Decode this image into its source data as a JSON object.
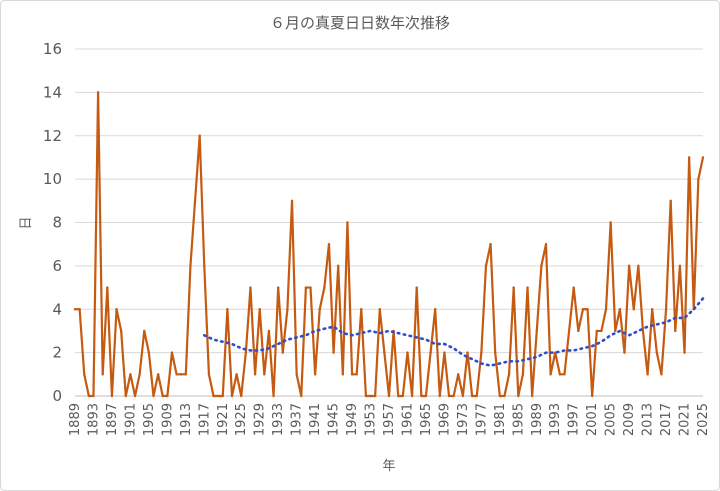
{
  "chart_data": {
    "type": "line",
    "title": "６月の真夏日日数年次推移",
    "xlabel": "年",
    "ylabel": "日",
    "ylim": [
      0,
      16
    ],
    "yticks": [
      0,
      2,
      4,
      6,
      8,
      10,
      12,
      14,
      16
    ],
    "x_start": 1889,
    "x_end": 2025,
    "xtick_labels": [
      "1889",
      "1893",
      "1897",
      "1901",
      "1905",
      "1909",
      "1913",
      "1917",
      "1921",
      "1925",
      "1929",
      "1933",
      "1937",
      "1941",
      "1945",
      "1949",
      "1953",
      "1957",
      "1961",
      "1965",
      "1969",
      "1973",
      "1977",
      "1981",
      "1985",
      "1989",
      "1993",
      "1997",
      "2001",
      "2005",
      "2009",
      "2013",
      "2017",
      "2021",
      "2025"
    ],
    "grid": true,
    "legend": "none",
    "series": [
      {
        "values": [
          4,
          4,
          1,
          0,
          0,
          14,
          1,
          5,
          0,
          4,
          3,
          0,
          1,
          0,
          1,
          3,
          2,
          0,
          1,
          0,
          0,
          2,
          1,
          1,
          1,
          6,
          9,
          12,
          6,
          1,
          0,
          0,
          0,
          4,
          0,
          1,
          0,
          2,
          5,
          1,
          4,
          1,
          3,
          0,
          5,
          2,
          4,
          9,
          1,
          0,
          5,
          5,
          1,
          4,
          5,
          7,
          2,
          6,
          1,
          8,
          1,
          1,
          4,
          0,
          0,
          0,
          4,
          2,
          0,
          3,
          0,
          0,
          2,
          0,
          5,
          0,
          0,
          2,
          4,
          0,
          2,
          0,
          0,
          1,
          0,
          2,
          0,
          0,
          2,
          6,
          7,
          2,
          0,
          0,
          1,
          5,
          0,
          1,
          5,
          0,
          3,
          6,
          7,
          1,
          2,
          1,
          1,
          3,
          5,
          3,
          4,
          4,
          0,
          3,
          3,
          4,
          8,
          3,
          4,
          2,
          6,
          4,
          6,
          3,
          1,
          4,
          2,
          1,
          4,
          9,
          3,
          6,
          2,
          11,
          4,
          10,
          11
        ],
        "color": "#c55a11"
      },
      {
        "trend": "moving-average",
        "x": [
          1917,
          1919,
          1921,
          1923,
          1925,
          1927,
          1929,
          1931,
          1933,
          1935,
          1937,
          1939,
          1941,
          1943,
          1945,
          1947,
          1949,
          1951,
          1953,
          1955,
          1957,
          1959,
          1961,
          1963,
          1965,
          1967,
          1969,
          1971,
          1973,
          1975,
          1977,
          1979,
          1981,
          1983,
          1985,
          1987,
          1989,
          1991,
          1993,
          1995,
          1997,
          1999,
          2001,
          2003,
          2005,
          2007,
          2009,
          2011,
          2013,
          2015,
          2017,
          2019,
          2021,
          2023,
          2025
        ],
        "values": [
          2.8,
          2.6,
          2.5,
          2.4,
          2.2,
          2.1,
          2.1,
          2.2,
          2.4,
          2.6,
          2.7,
          2.8,
          3.0,
          3.1,
          3.2,
          2.9,
          2.8,
          2.9,
          3.0,
          2.9,
          3.0,
          2.9,
          2.8,
          2.7,
          2.6,
          2.4,
          2.4,
          2.2,
          1.9,
          1.7,
          1.5,
          1.4,
          1.5,
          1.6,
          1.6,
          1.7,
          1.8,
          2.0,
          2.0,
          2.1,
          2.1,
          2.2,
          2.3,
          2.5,
          2.8,
          3.0,
          2.8,
          3.0,
          3.2,
          3.3,
          3.4,
          3.6,
          3.6,
          4.0,
          4.5
        ],
        "color": "#2e4fc7"
      }
    ]
  }
}
